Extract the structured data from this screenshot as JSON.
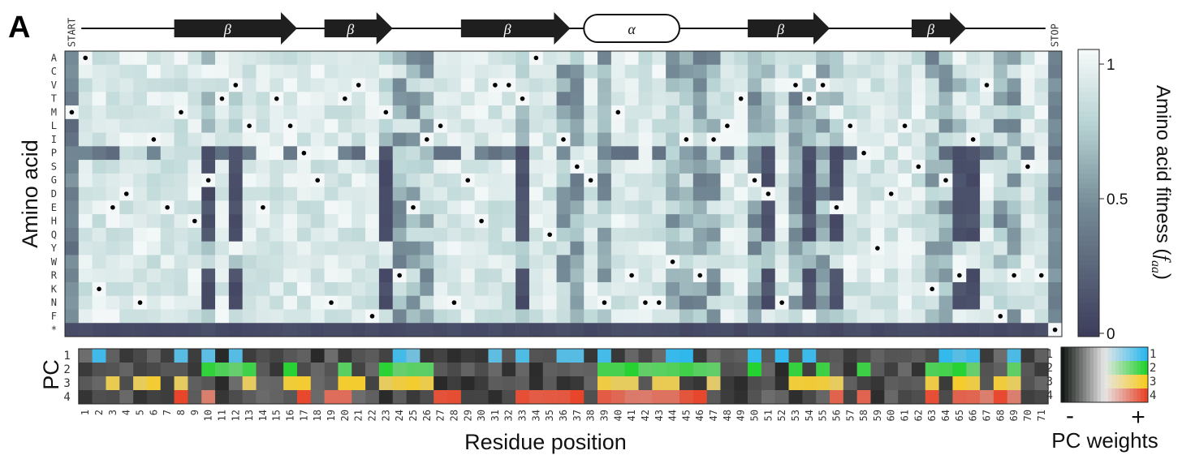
{
  "panel_letter": "A",
  "structure": {
    "start_label": "START",
    "stop_label": "STOP",
    "elements": [
      {
        "type": "beta",
        "label": "β",
        "from": 8,
        "to": 16
      },
      {
        "type": "beta",
        "label": "β",
        "from": 19,
        "to": 23
      },
      {
        "type": "beta",
        "label": "β",
        "from": 29,
        "to": 36
      },
      {
        "type": "alpha",
        "label": "α",
        "from": 38,
        "to": 44
      },
      {
        "type": "beta",
        "label": "β",
        "from": 50,
        "to": 55
      },
      {
        "type": "beta",
        "label": "β",
        "from": 62,
        "to": 65
      }
    ]
  },
  "colorbar": {
    "ticks": [
      {
        "value": 1,
        "label": "1"
      },
      {
        "value": 0.5,
        "label": "0.5"
      },
      {
        "value": 0,
        "label": "0"
      }
    ],
    "title_main": "Amino acid fitness (",
    "title_f": "f",
    "title_sub": "aa",
    "title_end": ")"
  },
  "pc_colorbar": {
    "minus_label": "-",
    "plus_label": "+",
    "title": "PC weights",
    "row_labels": [
      "1",
      "2",
      "3",
      "4"
    ],
    "colors": [
      "#2cb8ee",
      "#23d22f",
      "#f7cc22",
      "#e8452a"
    ]
  },
  "xlabel": "Residue position",
  "heatmap_ylabel": "Amino acid",
  "pc_ylabel": "PC",
  "chart_data": [
    {
      "type": "heatmap",
      "title": "",
      "xlabel": "Residue position",
      "ylabel": "Amino acid",
      "x_ticks": [
        "START",
        "1",
        "2",
        "3",
        "4",
        "5",
        "6",
        "7",
        "8",
        "9",
        "10",
        "11",
        "12",
        "13",
        "14",
        "15",
        "16",
        "17",
        "18",
        "19",
        "20",
        "21",
        "22",
        "23",
        "24",
        "25",
        "26",
        "27",
        "28",
        "29",
        "30",
        "31",
        "32",
        "33",
        "34",
        "35",
        "36",
        "37",
        "38",
        "39",
        "40",
        "41",
        "42",
        "43",
        "44",
        "45",
        "46",
        "47",
        "48",
        "49",
        "50",
        "51",
        "52",
        "53",
        "54",
        "55",
        "56",
        "57",
        "58",
        "59",
        "60",
        "61",
        "62",
        "63",
        "64",
        "65",
        "66",
        "67",
        "68",
        "69",
        "70",
        "71",
        "STOP"
      ],
      "y_ticks": [
        "A",
        "C",
        "V",
        "T",
        "M",
        "L",
        "I",
        "P",
        "S",
        "G",
        "D",
        "E",
        "H",
        "Q",
        "Y",
        "W",
        "R",
        "K",
        "N",
        "F",
        "*"
      ],
      "colorbar_range": [
        0,
        1
      ],
      "colorbar_label": "Amino acid fitness (f_aa)",
      "wild_type_dot_row_per_position": {
        "START": "M",
        "1": "A",
        "2": "K",
        "3": "E",
        "4": "D",
        "5": "N",
        "6": "I",
        "7": "E",
        "8": "M",
        "9": "H",
        "10": "G",
        "11": "T",
        "12": "V",
        "13": "L",
        "14": "E",
        "15": "T",
        "16": "L",
        "17": "P",
        "18": "G",
        "19": "N",
        "20": "T",
        "21": "V",
        "22": "F",
        "23": "M",
        "24": "R",
        "25": "E",
        "26": "I",
        "27": "L",
        "28": "N",
        "29": "G",
        "30": "H",
        "31": "V",
        "32": "V",
        "33": "T",
        "34": "A",
        "35": "Q",
        "36": "I",
        "37": "S",
        "38": "G",
        "39": "N",
        "40": "M",
        "41": "R",
        "42": "N",
        "43": "N",
        "44": "W",
        "45": "I",
        "46": "R",
        "47": "I",
        "48": "L",
        "49": "T",
        "50": "G",
        "51": "D",
        "52": "N",
        "53": "V",
        "54": "T",
        "55": "V",
        "56": "E",
        "57": "L",
        "58": "P",
        "59": "Y",
        "60": "D",
        "61": "L",
        "62": "S",
        "63": "K",
        "64": "G",
        "65": "R",
        "66": "I",
        "67": "V",
        "68": "F",
        "69": "R",
        "70": "S",
        "71": "R",
        "STOP": "*"
      }
    },
    {
      "type": "heatmap",
      "title": "",
      "xlabel": "Residue position",
      "ylabel": "PC",
      "x_ticks": [
        "1",
        "2",
        "3",
        "4",
        "5",
        "6",
        "7",
        "8",
        "9",
        "10",
        "11",
        "12",
        "13",
        "14",
        "15",
        "16",
        "17",
        "18",
        "19",
        "20",
        "21",
        "22",
        "23",
        "24",
        "25",
        "26",
        "27",
        "28",
        "29",
        "30",
        "31",
        "32",
        "33",
        "34",
        "35",
        "36",
        "37",
        "38",
        "39",
        "40",
        "41",
        "42",
        "43",
        "44",
        "45",
        "46",
        "47",
        "48",
        "49",
        "50",
        "51",
        "52",
        "53",
        "54",
        "55",
        "56",
        "57",
        "58",
        "59",
        "60",
        "61",
        "62",
        "63",
        "64",
        "65",
        "66",
        "67",
        "68",
        "69",
        "70",
        "71"
      ],
      "y_ticks": [
        "1",
        "2",
        "3",
        "4"
      ],
      "legend": "PC weights (- to +)",
      "strong_positive_positions": {
        "1": [
          "2",
          "8",
          "10",
          "12",
          "24",
          "25",
          "31",
          "33",
          "36",
          "37",
          "39",
          "44",
          "45",
          "50",
          "52",
          "54",
          "64",
          "65",
          "66",
          "69"
        ],
        "2": [
          "10",
          "11",
          "12",
          "13",
          "16",
          "20",
          "23",
          "24",
          "25",
          "26",
          "39",
          "40",
          "41",
          "42",
          "43",
          "44",
          "45",
          "46",
          "47",
          "50",
          "53",
          "55",
          "58",
          "63",
          "64",
          "65",
          "66",
          "69"
        ],
        "3": [
          "3",
          "5",
          "6",
          "8",
          "13",
          "16",
          "17",
          "20",
          "21",
          "23",
          "24",
          "25",
          "26",
          "39",
          "40",
          "41",
          "43",
          "44",
          "47",
          "53",
          "54",
          "55",
          "56",
          "63",
          "65",
          "66",
          "68",
          "69"
        ],
        "4": [
          "8",
          "10",
          "17",
          "19",
          "20",
          "27",
          "28",
          "33",
          "34",
          "35",
          "36",
          "37",
          "39",
          "40",
          "41",
          "42",
          "43",
          "44",
          "45",
          "46",
          "56",
          "58",
          "63",
          "65",
          "66",
          "67",
          "68",
          "69"
        ]
      }
    }
  ]
}
